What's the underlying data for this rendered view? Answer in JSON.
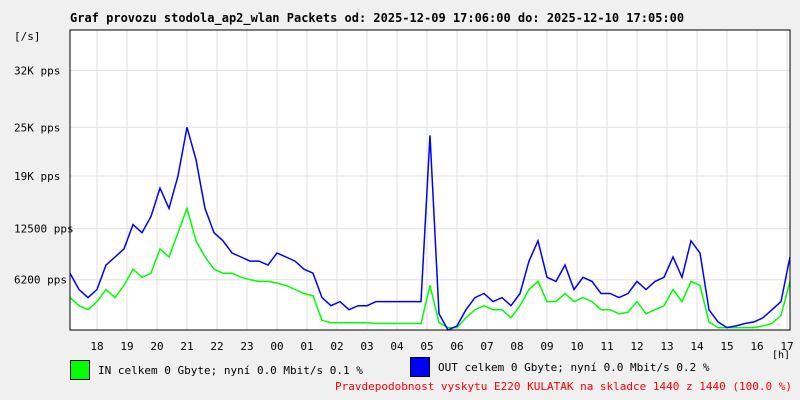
{
  "title": "Graf provozu stodola_ap2_wlan Packets od: 2025-12-09 17:06:00 do: 2025-12-10 17:05:00",
  "colors": {
    "in": "#00ff00",
    "out": "#0000ff",
    "grid": "#e0e0e0",
    "footnote": "#ff0000"
  },
  "legend": {
    "in_label": "IN celkem 0 Gbyte; nyní   0.0 Mbit/s 0.1 %",
    "out_label": "OUT celkem 0 Gbyte; nyní   0.0 Mbit/s 0.2 %"
  },
  "footnote": "Pravdepodobnost vyskytu E220 KULATAK na skladce 1440 z 1440 (100.0 %)",
  "chart_data": {
    "type": "area",
    "y_unit": "[/s]",
    "x_unit": "[h]",
    "x_ticks": [
      "18",
      "19",
      "20",
      "21",
      "22",
      "23",
      "00",
      "01",
      "02",
      "03",
      "04",
      "05",
      "06",
      "07",
      "08",
      "09",
      "10",
      "11",
      "12",
      "13",
      "14",
      "15",
      "16",
      "17"
    ],
    "x_tick_offsets_h": [
      0.9,
      1.9,
      2.9,
      3.9,
      4.9,
      5.9,
      6.9,
      7.9,
      8.9,
      9.9,
      10.9,
      11.9,
      12.9,
      13.9,
      14.9,
      15.9,
      16.9,
      17.9,
      18.9,
      19.9,
      20.9,
      21.9,
      22.9,
      23.9
    ],
    "y_ticks": [
      {
        "label": "6200 pps",
        "value": 6200
      },
      {
        "label": "12500 pps",
        "value": 12500
      },
      {
        "label": "19K pps",
        "value": 19000
      },
      {
        "label": "25K pps",
        "value": 25000
      },
      {
        "label": "32K pps",
        "value": 32000
      }
    ],
    "xlim_h": [
      0,
      24
    ],
    "ylim": [
      0,
      37000
    ],
    "grid": true,
    "series": [
      {
        "name": "IN",
        "x": [
          0,
          0.3,
          0.6,
          0.9,
          1.2,
          1.5,
          1.8,
          2.1,
          2.4,
          2.7,
          3.0,
          3.3,
          3.6,
          3.9,
          4.2,
          4.5,
          4.8,
          5.1,
          5.4,
          5.7,
          6.0,
          6.3,
          6.6,
          6.9,
          7.2,
          7.5,
          7.8,
          8.1,
          8.4,
          8.7,
          9.0,
          9.3,
          9.6,
          9.9,
          10.2,
          10.5,
          10.8,
          11.1,
          11.4,
          11.7,
          12.0,
          12.3,
          12.6,
          12.9,
          13.2,
          13.5,
          13.8,
          14.1,
          14.4,
          14.7,
          15.0,
          15.3,
          15.6,
          15.9,
          16.2,
          16.5,
          16.8,
          17.1,
          17.4,
          17.7,
          18.0,
          18.3,
          18.6,
          18.9,
          19.2,
          19.5,
          19.8,
          20.1,
          20.4,
          20.7,
          21.0,
          21.3,
          21.6,
          21.9,
          22.2,
          22.5,
          22.8,
          23.1,
          23.4,
          23.7,
          24.0
        ],
        "y": [
          4000,
          3000,
          2500,
          3500,
          5000,
          4000,
          5500,
          7500,
          6500,
          7000,
          10000,
          9000,
          12000,
          15000,
          11000,
          9000,
          7500,
          7000,
          7000,
          6500,
          6200,
          6000,
          6000,
          5800,
          5500,
          5000,
          4500,
          4200,
          1200,
          900,
          900,
          900,
          900,
          900,
          800,
          800,
          800,
          800,
          800,
          800,
          5500,
          900,
          300,
          300,
          1500,
          2500,
          3000,
          2500,
          2500,
          1500,
          3000,
          5000,
          6000,
          3500,
          3500,
          4500,
          3500,
          4000,
          3500,
          2500,
          2500,
          2000,
          2200,
          3500,
          2000,
          2500,
          3000,
          5000,
          3500,
          6000,
          5500,
          1000,
          300,
          300,
          300,
          300,
          300,
          500,
          800,
          1800,
          6000
        ]
      },
      {
        "name": "OUT",
        "x": [
          0,
          0.3,
          0.6,
          0.9,
          1.2,
          1.5,
          1.8,
          2.1,
          2.4,
          2.7,
          3.0,
          3.3,
          3.6,
          3.9,
          4.2,
          4.5,
          4.8,
          5.1,
          5.4,
          5.7,
          6.0,
          6.3,
          6.6,
          6.9,
          7.2,
          7.5,
          7.8,
          8.1,
          8.4,
          8.7,
          9.0,
          9.3,
          9.6,
          9.9,
          10.2,
          10.5,
          10.8,
          11.1,
          11.4,
          11.7,
          12.0,
          12.3,
          12.6,
          12.9,
          13.2,
          13.5,
          13.8,
          14.1,
          14.4,
          14.7,
          15.0,
          15.3,
          15.6,
          15.9,
          16.2,
          16.5,
          16.8,
          17.1,
          17.4,
          17.7,
          18.0,
          18.3,
          18.6,
          18.9,
          19.2,
          19.5,
          19.8,
          20.1,
          20.4,
          20.7,
          21.0,
          21.3,
          21.6,
          21.9,
          22.2,
          22.5,
          22.8,
          23.1,
          23.4,
          23.7,
          24.0
        ],
        "y": [
          7000,
          5000,
          4000,
          5000,
          8000,
          9000,
          10000,
          13000,
          12000,
          14000,
          17500,
          15000,
          19000,
          25000,
          21000,
          15000,
          12000,
          11000,
          9500,
          9000,
          8500,
          8500,
          8000,
          9500,
          9000,
          8500,
          7500,
          7000,
          4000,
          3000,
          3500,
          2500,
          3000,
          3000,
          3500,
          3500,
          3500,
          3500,
          3500,
          3500,
          24000,
          2000,
          0,
          500,
          2500,
          4000,
          4500,
          3500,
          4000,
          3000,
          4500,
          8500,
          11000,
          6500,
          6000,
          8000,
          5000,
          6500,
          6000,
          4500,
          4500,
          4000,
          4500,
          6000,
          5000,
          6000,
          6500,
          9000,
          6500,
          11000,
          9500,
          2500,
          1000,
          300,
          500,
          800,
          1000,
          1500,
          2500,
          3500,
          9000
        ]
      }
    ]
  }
}
